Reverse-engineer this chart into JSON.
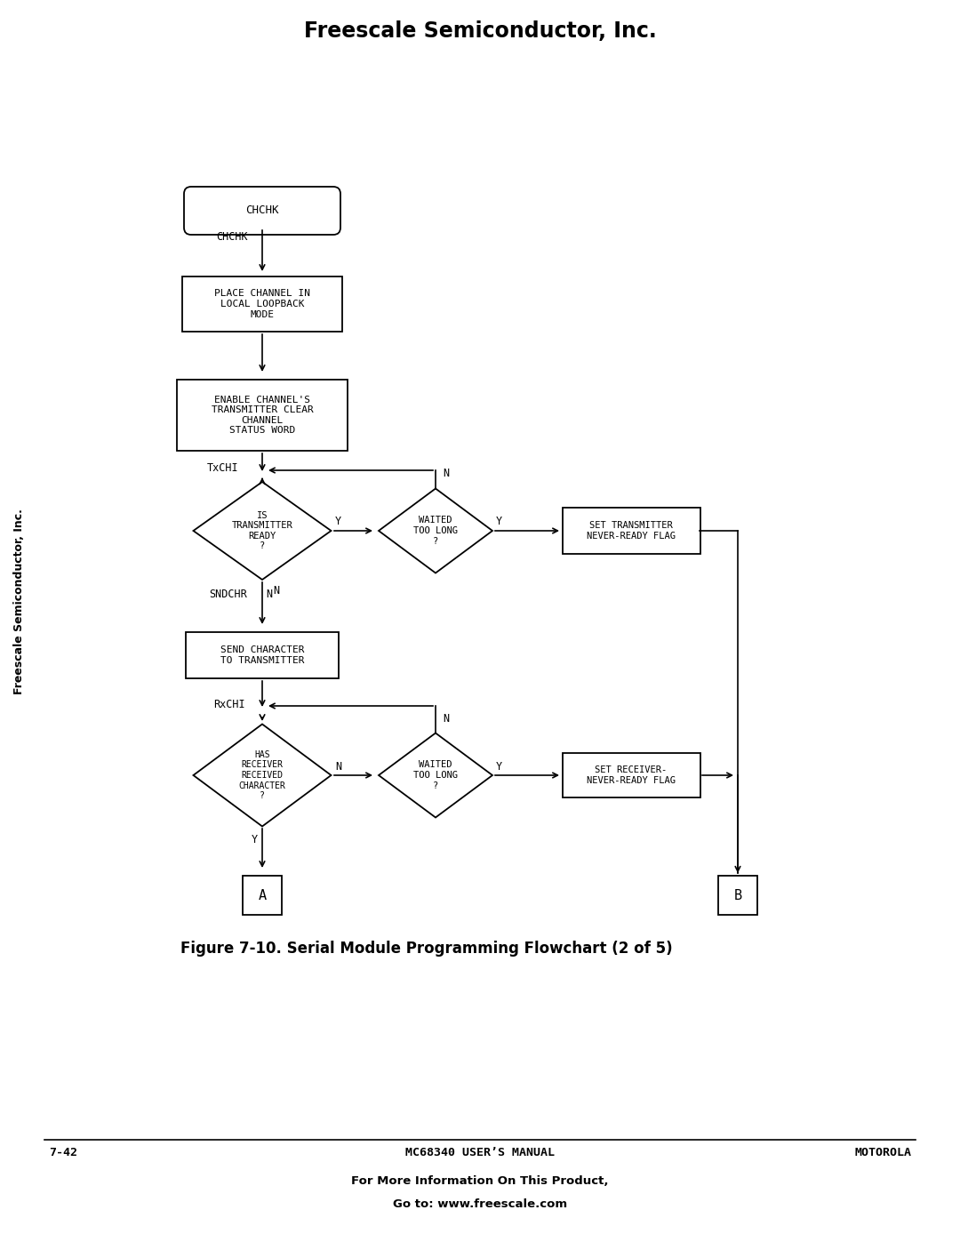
{
  "title": "Freescale Semiconductor, Inc.",
  "footer_left": "7-42",
  "footer_center": "MC68340 USER’S MANUAL",
  "footer_right": "MOTOROLA",
  "footer_bottom1": "For More Information On This Product,",
  "footer_bottom2": "Go to: www.freescale.com",
  "figure_caption": "Figure 7-10. Serial Module Programming Flowchart (2 of 5)",
  "sidebar_text": "Freescale Semiconductor, Inc.",
  "bg_color": "#ffffff",
  "line_color": "#000000",
  "text_color": "#000000"
}
